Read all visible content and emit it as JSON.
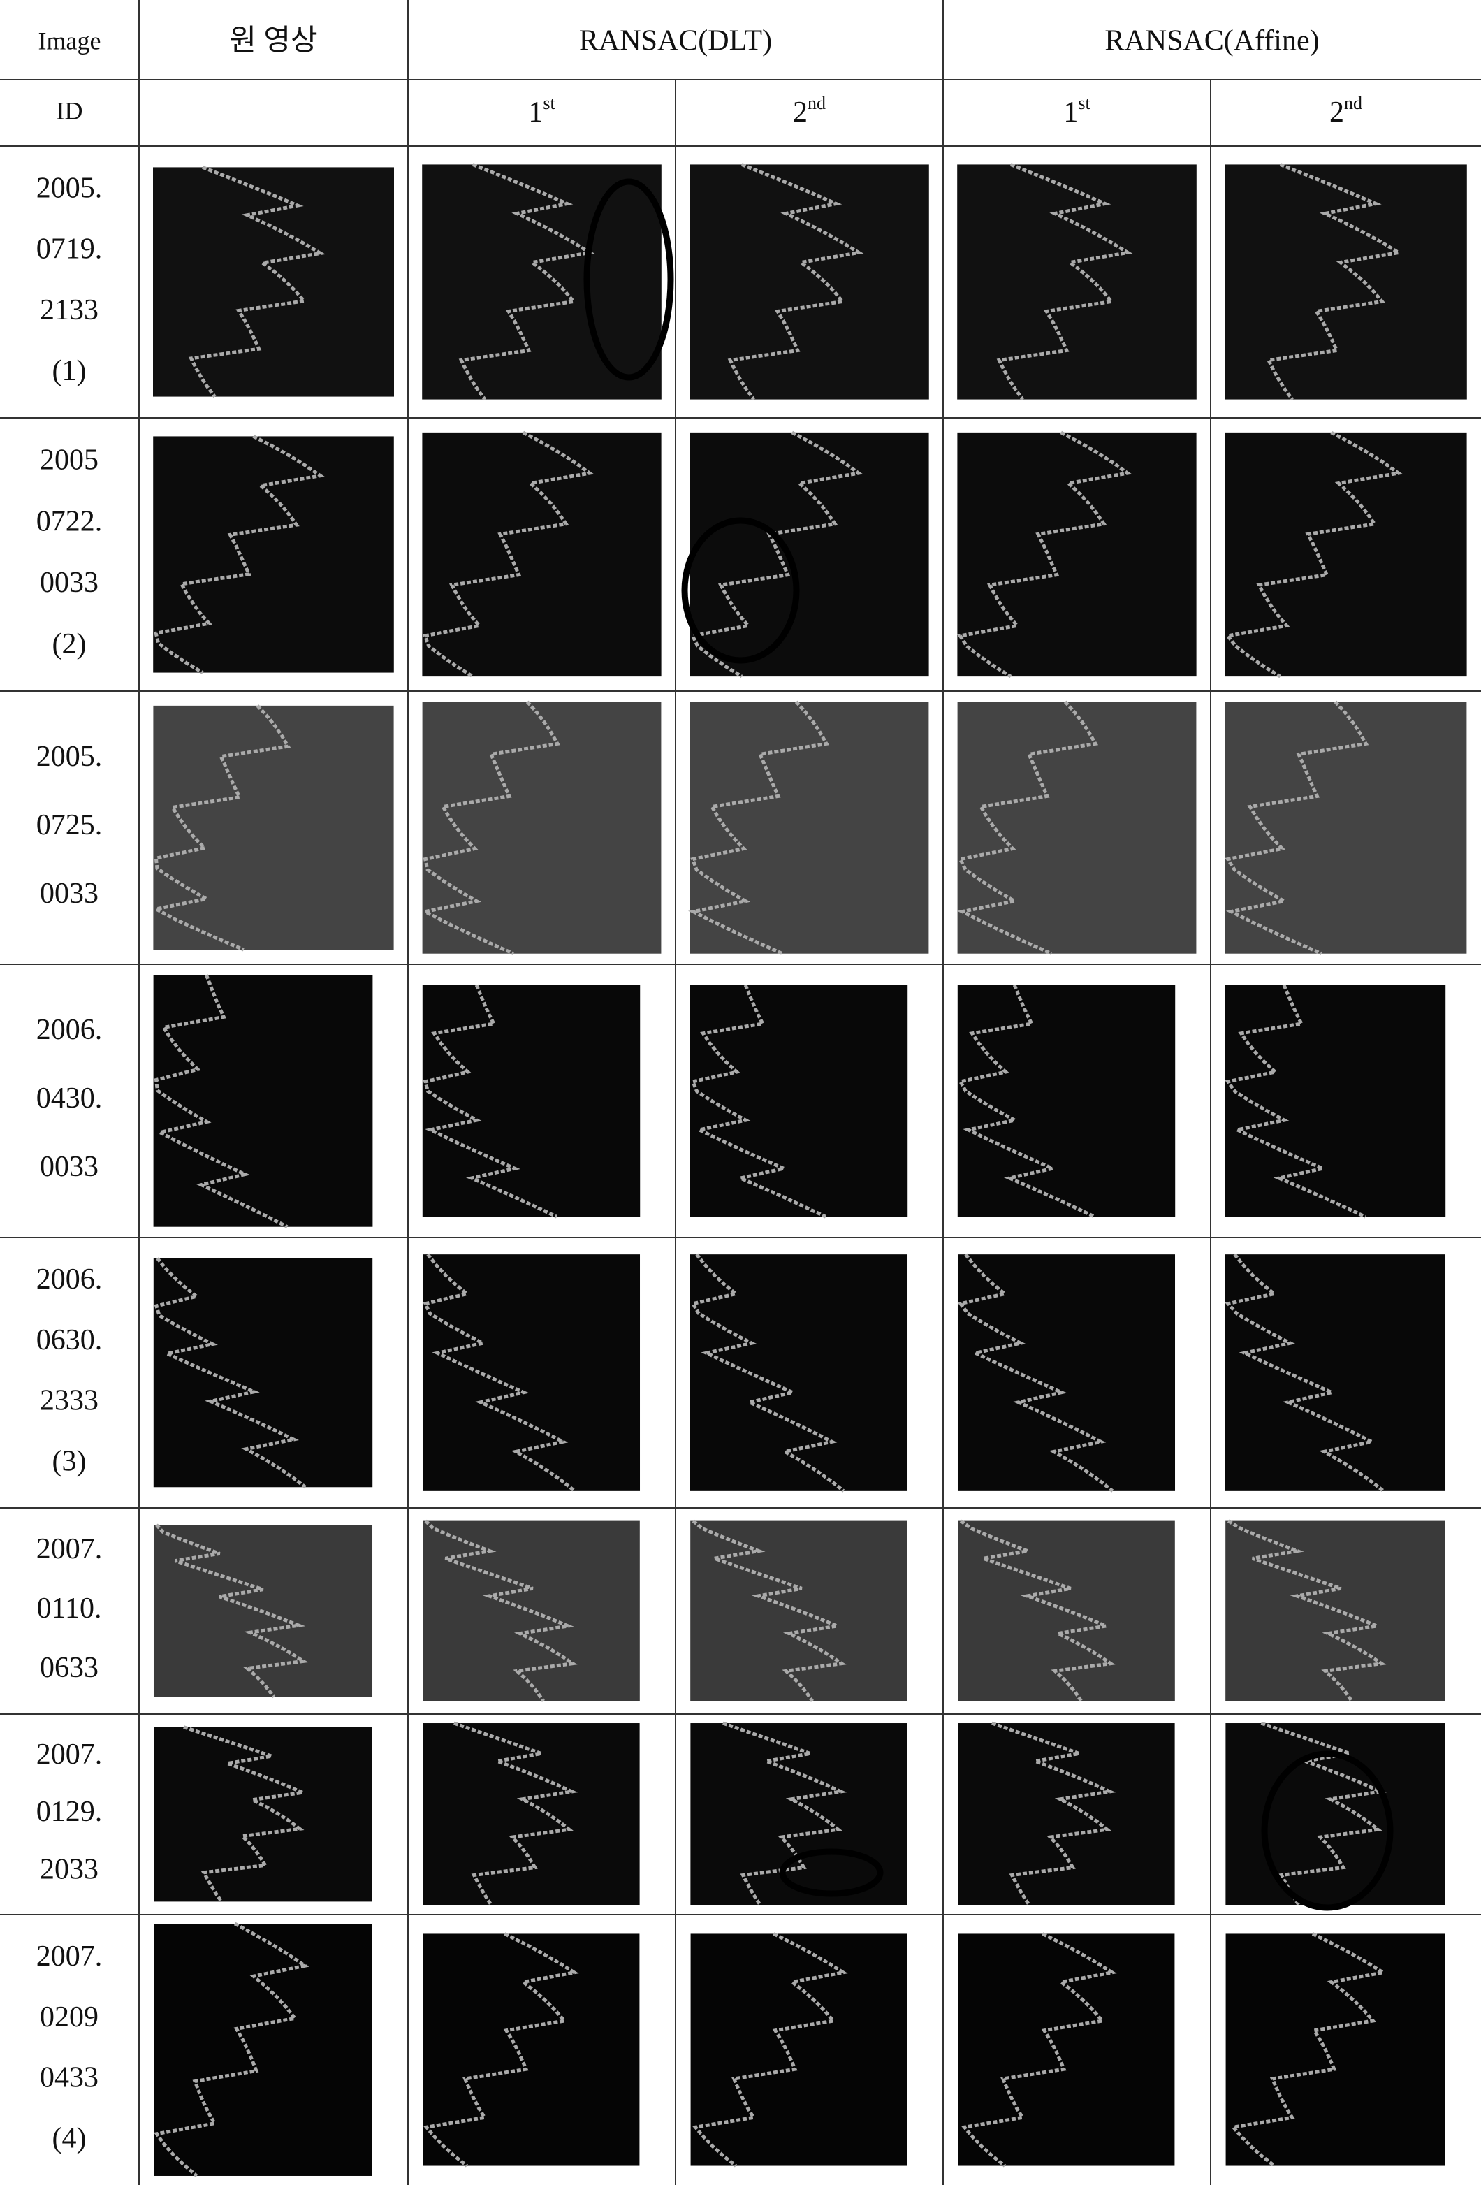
{
  "table": {
    "header": {
      "row1": [
        "Image",
        "원 영상",
        "RANSAC(DLT)",
        "RANSAC(Affine)"
      ],
      "row2": {
        "id": "ID",
        "subs": [
          {
            "base": "1",
            "sup": "st"
          },
          {
            "base": "2",
            "sup": "nd"
          },
          {
            "base": "1",
            "sup": "st"
          },
          {
            "base": "2",
            "sup": "nd"
          }
        ]
      }
    },
    "rows": [
      [
        "2005.",
        "0719.",
        "2133",
        "(1)"
      ],
      [
        "2005",
        "0722.",
        "0033",
        "(2)"
      ],
      [
        "2005.",
        "0725.",
        "0033"
      ],
      [
        "2006.",
        "0430.",
        "0033"
      ],
      [
        "2006.",
        "0630.",
        "2333",
        "(3)"
      ],
      [
        "2007.",
        "0110.",
        "0633"
      ],
      [
        "2007.",
        "0129.",
        "2033"
      ],
      [
        "2007.",
        "0209",
        "0433",
        "(4)"
      ]
    ]
  }
}
